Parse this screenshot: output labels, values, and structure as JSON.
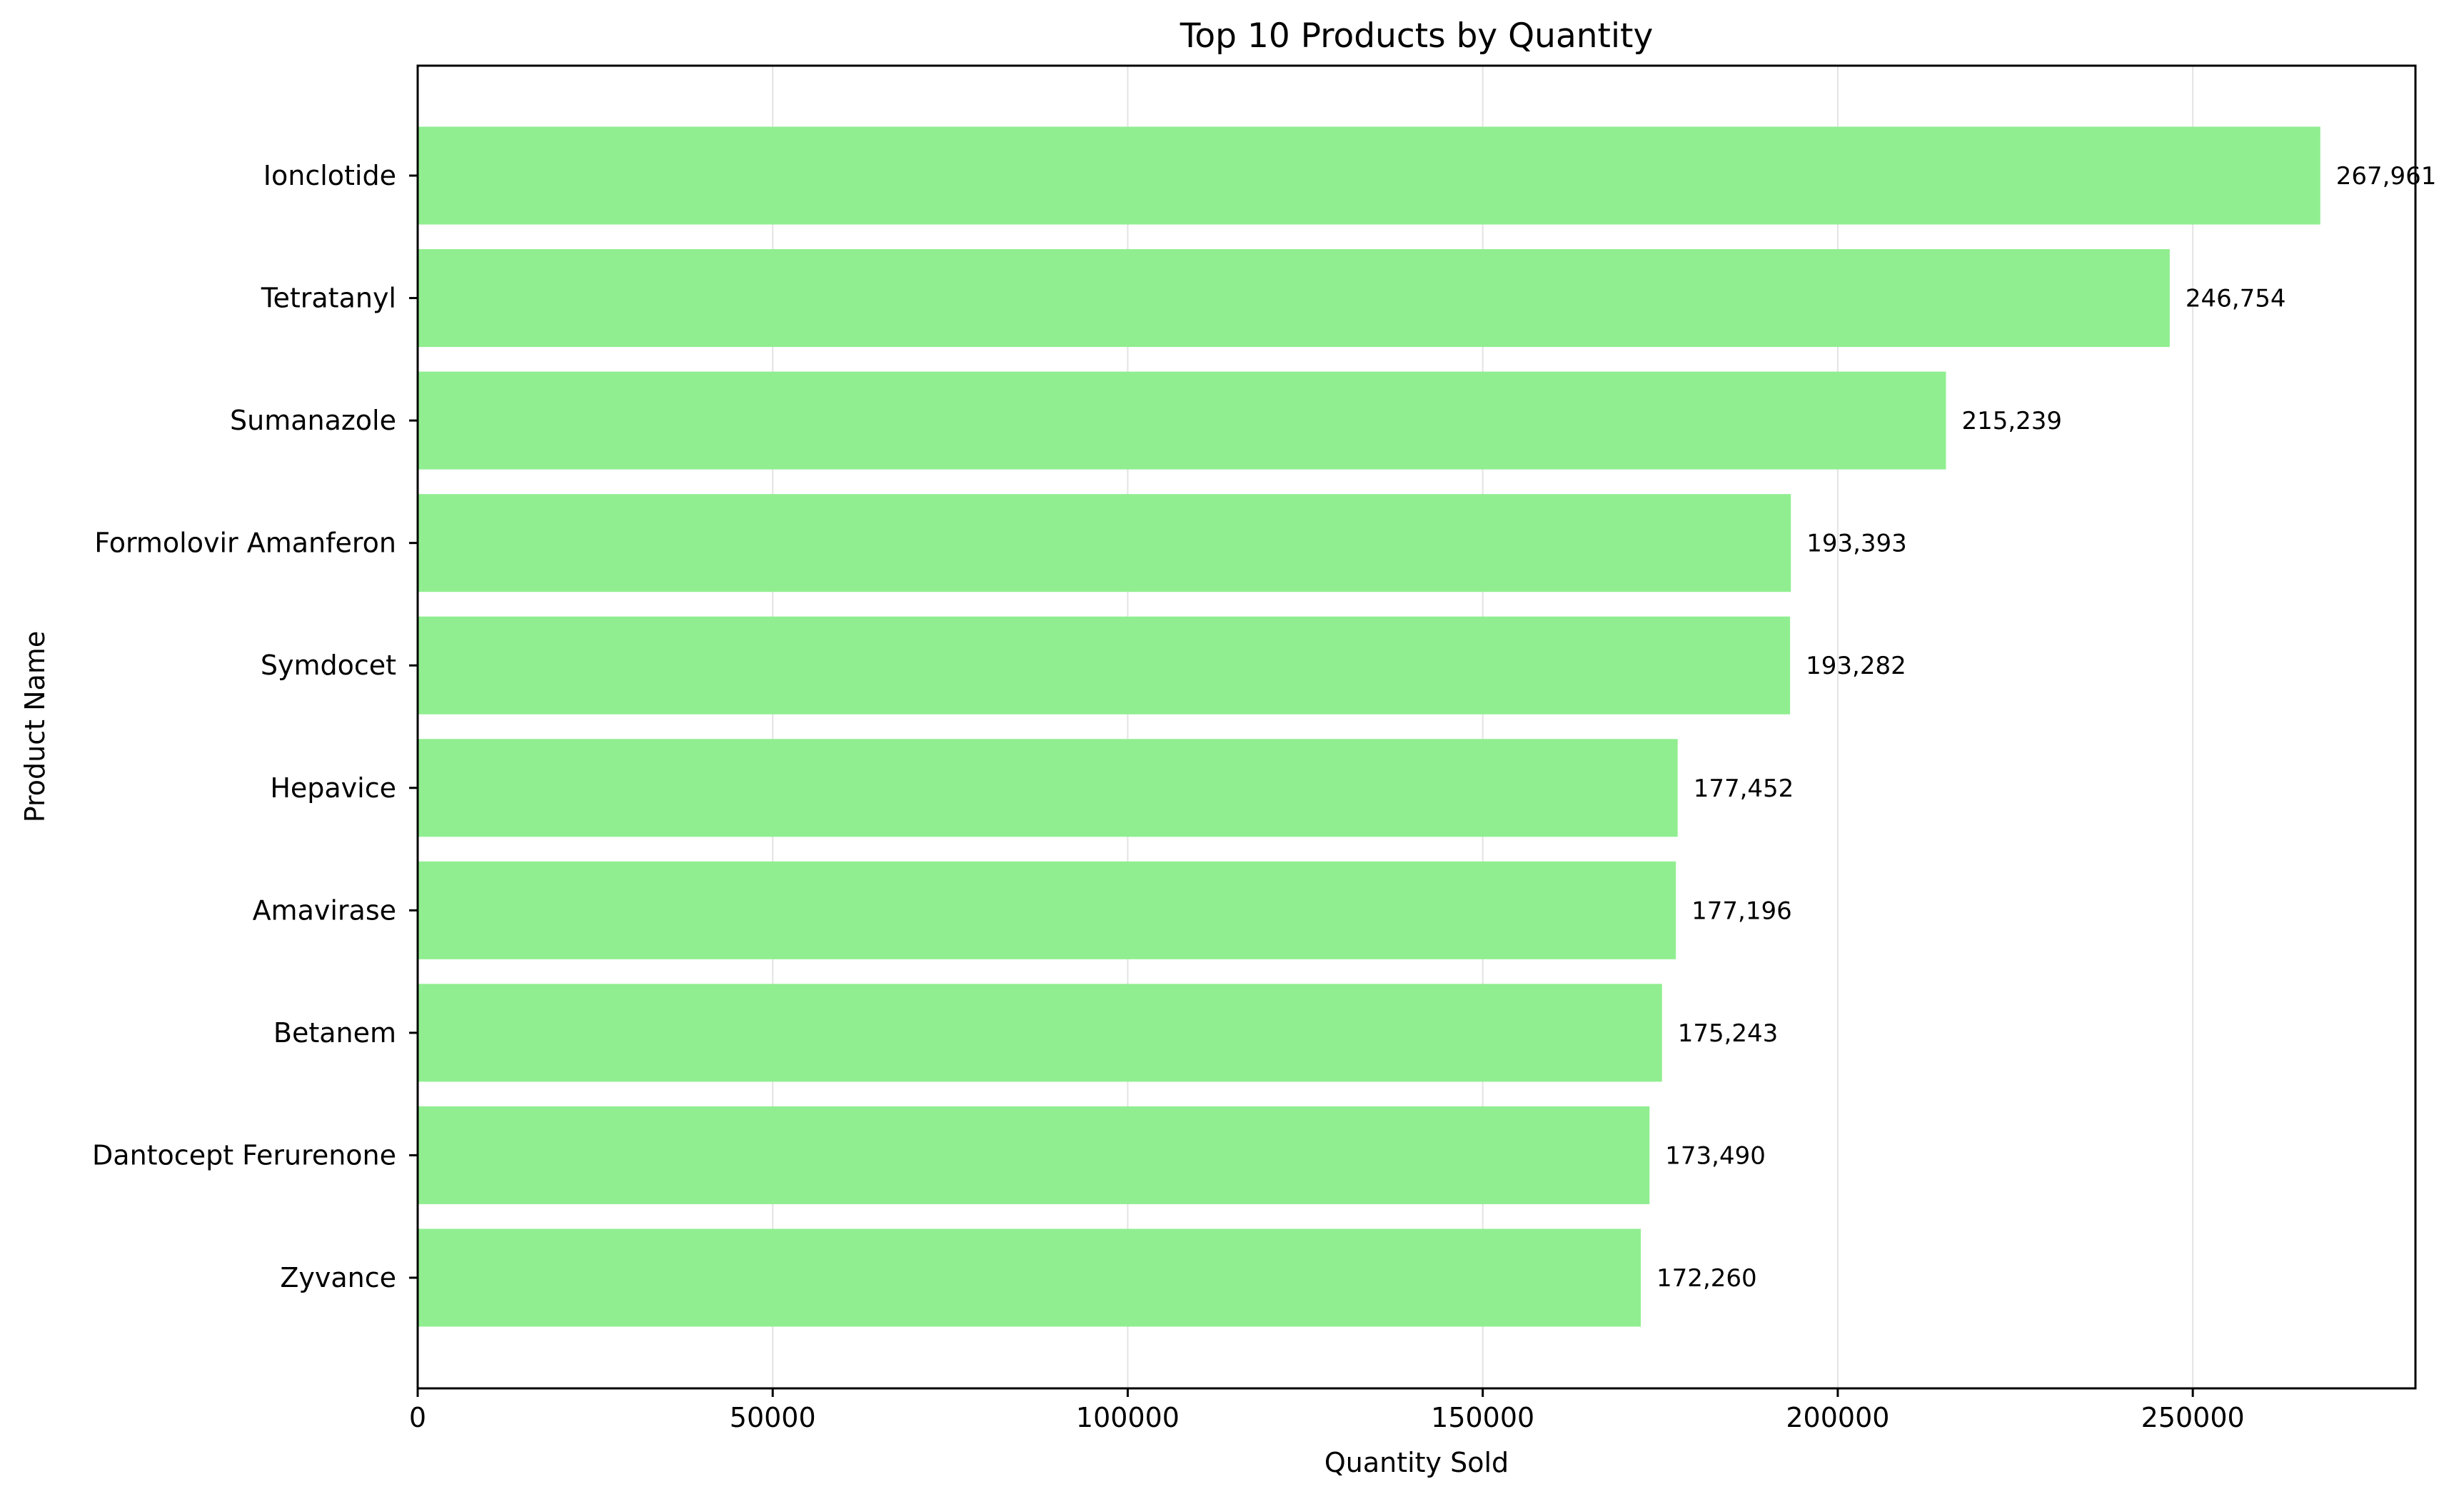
{
  "chart_data": {
    "type": "bar",
    "orientation": "horizontal",
    "title": "Top 10 Products by Quantity",
    "xlabel": "Quantity Sold",
    "ylabel": "Product Name",
    "categories": [
      "Ionclotide",
      "Tetratanyl",
      "Sumanazole",
      "Formolovir Amanferon",
      "Symdocet",
      "Hepavice",
      "Amavirase",
      "Betanem",
      "Dantocept Ferurenone",
      "Zyvance"
    ],
    "values": [
      267961,
      246754,
      215239,
      193393,
      193282,
      177452,
      177196,
      175243,
      173490,
      172260
    ],
    "value_labels": [
      "267,961",
      "246,754",
      "215,239",
      "193,393",
      "193,282",
      "177,452",
      "177,196",
      "175,243",
      "173,490",
      "172,260"
    ],
    "xlim": [
      0,
      281359
    ],
    "xticks": [
      0,
      50000,
      100000,
      150000,
      200000,
      250000
    ],
    "xtick_labels": [
      "0",
      "50000",
      "100000",
      "150000",
      "200000",
      "250000"
    ],
    "grid": "x",
    "bar_color": "#90ee90"
  }
}
